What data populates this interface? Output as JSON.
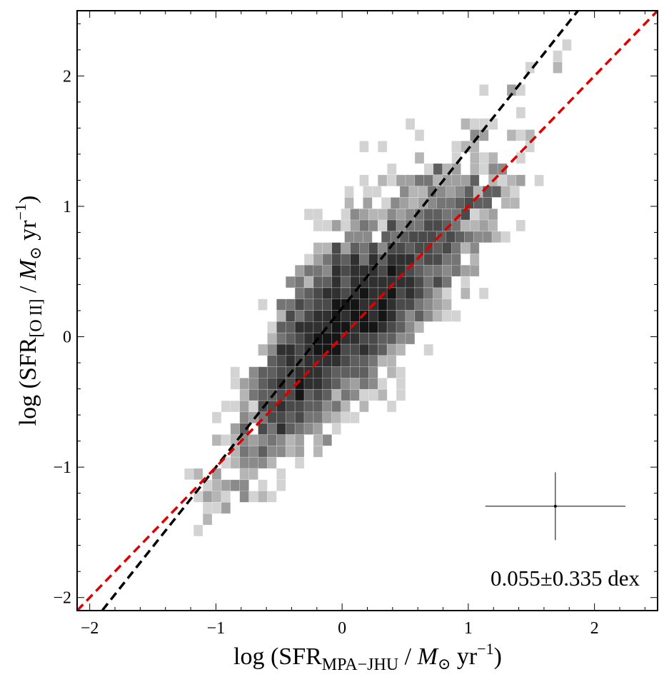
{
  "chart_data": {
    "type": "heatmap",
    "subtype": "2d-histogram",
    "title": "",
    "xlabel": {
      "prefix": "log (SFR",
      "sub": "MPA−JHU",
      "mid": " / ",
      "m": "M",
      "msub": "⊙",
      "unit": " yr",
      "sup": "−1",
      "suffix": ")"
    },
    "ylabel": {
      "prefix": "log (SFR",
      "sub": "[O II]",
      "mid": " / ",
      "m": "M",
      "msub": "⊙",
      "unit": " yr",
      "sup": "−1",
      "suffix": ")"
    },
    "xlim": [
      -2.1,
      2.5
    ],
    "ylim": [
      -2.1,
      2.5
    ],
    "xticks": [
      {
        "value": -2,
        "label": "−2"
      },
      {
        "value": -1,
        "label": "−1"
      },
      {
        "value": 0,
        "label": "0"
      },
      {
        "value": 1,
        "label": "1"
      },
      {
        "value": 2,
        "label": "2"
      }
    ],
    "yticks": [
      {
        "value": -2,
        "label": "−2"
      },
      {
        "value": -1,
        "label": "−1"
      },
      {
        "value": 0,
        "label": "0"
      },
      {
        "value": 1,
        "label": "1"
      },
      {
        "value": 2,
        "label": "2"
      }
    ],
    "minor_tick_step": 0.2,
    "grid": false,
    "colormap": "greys",
    "shade_levels": [
      "#d3d3d3",
      "#b5b5b5",
      "#a0a0a0",
      "#8a8a8a",
      "#757575",
      "#5f5f5f",
      "#4a4a4a",
      "#303030",
      "#151515"
    ],
    "bin_width": [
      0.073,
      0.0866
    ],
    "rows": [
      {
        "y": 2.237,
        "x_first": 1.781,
        "levels": [
          1
        ]
      },
      {
        "y": 2.151,
        "x_first": 1.708,
        "levels": [
          1
        ]
      },
      {
        "y": 2.064,
        "x_first": 1.489,
        "levels": [
          1,
          0,
          0,
          2
        ]
      },
      {
        "y": 1.891,
        "x_first": 1.124,
        "levels": [
          1,
          0,
          0,
          3,
          1
        ]
      },
      {
        "y": 1.718,
        "x_first": 1.416,
        "levels": [
          1
        ]
      },
      {
        "y": 1.631,
        "x_first": 0.54,
        "levels": [
          1,
          0,
          0,
          0,
          0,
          0,
          2,
          1,
          1,
          1
        ]
      },
      {
        "y": 1.545,
        "x_first": 0.613,
        "levels": [
          1,
          0,
          0,
          0,
          0,
          0,
          4,
          3,
          0,
          0,
          2,
          1,
          2
        ]
      },
      {
        "y": 1.458,
        "x_first": 0.174,
        "levels": [
          1,
          0,
          1,
          0,
          0,
          0,
          0,
          0,
          0,
          0,
          1,
          2,
          2,
          0,
          0,
          0,
          0,
          0,
          1
        ]
      },
      {
        "y": 1.371,
        "x_first": 0.613,
        "levels": [
          2,
          0,
          0,
          0,
          1,
          0,
          2,
          1,
          2,
          0,
          0,
          1
        ]
      },
      {
        "y": 1.285,
        "x_first": 0.394,
        "levels": [
          1,
          0,
          0,
          0,
          1,
          6,
          2,
          3,
          0,
          2,
          1,
          4,
          4
        ]
      },
      {
        "y": 1.198,
        "x_first": 0.174,
        "levels": [
          1,
          0,
          2,
          1,
          3,
          3,
          5,
          5,
          2,
          3,
          3,
          3,
          6,
          0,
          2,
          1,
          2,
          3,
          0,
          1
        ]
      },
      {
        "y": 1.112,
        "x_first": 0.056,
        "levels": [
          1,
          0,
          1,
          1,
          0,
          0,
          4,
          2,
          2,
          5,
          4,
          3,
          4,
          6,
          2,
          6,
          6,
          2,
          1
        ]
      },
      {
        "y": 1.025,
        "x_first": 0.056,
        "levels": [
          2,
          0,
          3,
          0,
          1,
          4,
          3,
          2,
          3,
          4,
          5,
          5,
          6,
          7,
          6,
          6,
          0,
          2,
          2
        ]
      },
      {
        "y": 0.938,
        "x_first": -0.264,
        "levels": [
          1,
          1,
          0,
          0,
          1,
          4,
          3,
          2,
          2,
          4,
          3,
          4,
          5,
          6,
          6,
          5,
          5,
          7,
          1,
          2,
          3
        ]
      },
      {
        "y": 0.852,
        "x_first": -0.191,
        "levels": [
          1,
          1,
          3,
          1,
          3,
          5,
          4,
          1,
          7,
          4,
          5,
          5,
          7,
          7,
          6,
          5,
          2,
          2,
          3,
          2,
          0,
          0,
          1
        ]
      },
      {
        "y": 0.765,
        "x_first": 0.056,
        "levels": [
          4,
          4,
          4,
          0,
          6,
          5,
          6,
          7,
          7,
          7,
          6,
          7,
          6,
          5,
          4,
          4,
          2,
          1
        ]
      },
      {
        "y": 0.679,
        "x_first": -0.191,
        "levels": [
          2,
          2,
          7,
          3,
          6,
          5,
          7,
          4,
          7,
          7,
          6,
          7,
          7,
          6,
          7,
          5,
          2,
          4
        ]
      },
      {
        "y": 0.592,
        "x_first": -0.264,
        "levels": [
          1,
          3,
          5,
          7,
          6,
          8,
          5,
          8,
          6,
          8,
          8,
          8,
          6,
          7,
          7,
          5,
          5,
          0,
          2
        ]
      },
      {
        "y": 0.506,
        "x_first": -0.337,
        "levels": [
          3,
          5,
          5,
          4,
          8,
          7,
          8,
          8,
          8,
          7,
          9,
          8,
          7,
          6,
          5,
          5,
          4,
          5,
          3,
          3
        ]
      },
      {
        "y": 0.419,
        "x_first": -0.41,
        "levels": [
          4,
          5,
          2,
          6,
          6,
          8,
          6,
          8,
          8,
          8,
          8,
          8,
          8,
          8,
          7,
          5,
          7,
          5,
          0,
          1
        ]
      },
      {
        "y": 0.332,
        "x_first": -0.337,
        "levels": [
          5,
          6,
          7,
          8,
          8,
          7,
          8,
          9,
          8,
          8,
          9,
          7,
          8,
          7,
          5,
          3,
          1,
          0,
          2,
          0,
          1
        ]
      },
      {
        "y": 0.246,
        "x_first": -0.629,
        "levels": [
          1,
          0,
          5,
          5,
          7,
          6,
          7,
          7,
          9,
          9,
          9,
          8,
          8,
          9,
          8,
          7,
          7,
          5,
          4,
          3,
          2
        ]
      },
      {
        "y": 0.159,
        "x_first": -0.483,
        "levels": [
          2,
          7,
          5,
          7,
          8,
          8,
          9,
          8,
          9,
          9,
          8,
          9,
          8,
          6,
          4,
          6,
          4,
          2,
          1,
          1
        ]
      },
      {
        "y": 0.073,
        "x_first": -0.556,
        "levels": [
          1,
          6,
          6,
          8,
          8,
          8,
          8,
          9,
          9,
          8,
          9,
          9,
          8,
          7,
          6,
          4,
          2
        ]
      },
      {
        "y": -0.014,
        "x_first": -0.556,
        "levels": [
          2,
          5,
          6,
          7,
          8,
          9,
          9,
          9,
          8,
          8,
          7,
          7,
          6,
          6,
          4,
          4
        ]
      },
      {
        "y": -0.101,
        "x_first": -0.629,
        "levels": [
          2,
          4,
          8,
          8,
          7,
          8,
          9,
          9,
          9,
          7,
          7,
          8,
          7,
          6,
          3,
          2,
          0,
          0,
          1
        ]
      },
      {
        "y": -0.187,
        "x_first": -0.556,
        "levels": [
          6,
          7,
          8,
          7,
          8,
          8,
          8,
          8,
          7,
          6,
          6,
          5,
          2,
          2
        ]
      },
      {
        "y": -0.274,
        "x_first": -0.848,
        "levels": [
          1,
          0,
          4,
          6,
          6,
          7,
          7,
          8,
          8,
          8,
          7,
          6,
          6,
          6,
          6,
          4,
          0,
          2,
          1
        ]
      },
      {
        "y": -0.36,
        "x_first": -0.848,
        "levels": [
          1,
          3,
          4,
          6,
          7,
          8,
          7,
          9,
          8,
          8,
          7,
          6,
          4,
          3,
          5,
          4,
          1,
          0,
          1
        ]
      },
      {
        "y": -0.447,
        "x_first": -0.775,
        "levels": [
          2,
          5,
          6,
          6,
          7,
          7,
          9,
          6,
          7,
          6,
          2,
          5,
          4,
          1,
          1,
          2,
          0,
          1
        ]
      },
      {
        "y": -0.534,
        "x_first": -0.921,
        "levels": [
          1,
          1,
          3,
          1,
          7,
          7,
          8,
          7,
          7,
          6,
          6,
          4,
          5,
          2,
          0,
          2,
          0,
          0,
          1
        ]
      },
      {
        "y": -0.62,
        "x_first": -0.994,
        "levels": [
          1,
          0,
          0,
          4,
          3,
          5,
          7,
          7,
          6,
          7,
          5,
          5,
          3,
          2,
          1,
          1
        ]
      },
      {
        "y": -0.707,
        "x_first": -0.848,
        "levels": [
          3,
          6,
          0,
          7,
          5,
          8,
          6,
          5,
          4,
          3,
          0,
          1
        ]
      },
      {
        "y": -0.793,
        "x_first": -0.994,
        "levels": [
          2,
          1,
          2,
          4,
          3,
          4,
          5,
          4,
          2,
          3,
          0,
          2,
          4
        ]
      },
      {
        "y": -0.88,
        "x_first": -0.848,
        "levels": [
          2,
          5,
          4,
          6,
          4,
          4,
          2,
          3,
          0,
          2
        ]
      },
      {
        "y": -0.967,
        "x_first": -0.921,
        "levels": [
          1,
          2,
          4,
          4,
          4,
          2,
          0,
          0,
          1
        ]
      },
      {
        "y": -1.053,
        "x_first": -1.213,
        "levels": [
          1,
          2,
          0,
          3,
          0,
          0,
          2,
          2,
          0,
          0,
          1
        ]
      },
      {
        "y": -1.14,
        "x_first": -1.067,
        "levels": [
          1,
          2,
          3,
          4,
          4,
          0,
          1,
          0,
          1
        ]
      },
      {
        "y": -1.226,
        "x_first": -1.14,
        "levels": [
          1,
          3,
          2,
          1,
          0,
          4,
          1,
          2,
          1
        ]
      },
      {
        "y": -1.313,
        "x_first": -1.067,
        "levels": [
          1,
          1,
          3
        ]
      },
      {
        "y": -1.4,
        "x_first": -1.067,
        "levels": [
          2
        ]
      },
      {
        "y": -1.486,
        "x_first": -1.14,
        "levels": [
          1
        ]
      }
    ],
    "lines": [
      {
        "slope": 1.22,
        "intercept": 0.22,
        "color": "#000000",
        "style": "dashed"
      },
      {
        "slope": 1.0,
        "intercept": 0.0,
        "color": "#dd0000",
        "style": "dashed"
      }
    ],
    "error_bar": {
      "x": 1.69,
      "y": -1.3,
      "xerr": 0.555,
      "yerr": 0.26,
      "color": "#000000"
    },
    "annotation": "0.055±0.335 dex"
  }
}
